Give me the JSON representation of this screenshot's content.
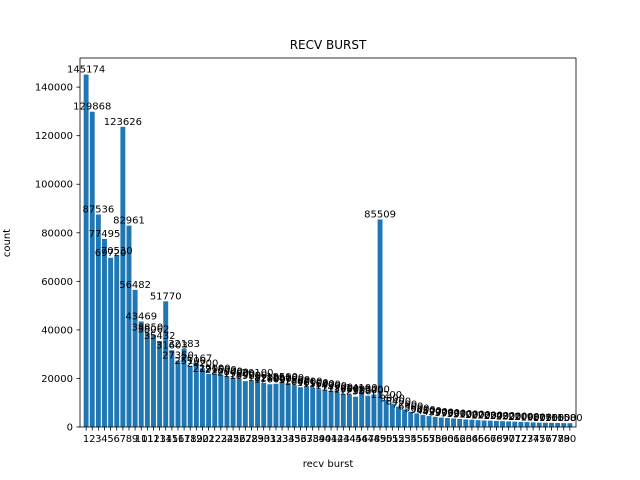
{
  "chart_data": {
    "type": "bar",
    "title": "RECV BURST",
    "xlabel": "recv burst",
    "ylabel": "count",
    "ylim": [
      0,
      152000
    ],
    "xlim": [
      0,
      81
    ],
    "y_ticks": [
      0,
      20000,
      40000,
      60000,
      80000,
      100000,
      120000,
      140000
    ],
    "y_tick_labels": [
      "0",
      "20000",
      "40000",
      "60000",
      "80000",
      "100000",
      "120000",
      "140000"
    ],
    "grid": false,
    "legend": "none",
    "bar_color": "#1f77b4",
    "categories": [
      1,
      2,
      3,
      4,
      5,
      6,
      7,
      8,
      9,
      10,
      11,
      12,
      13,
      14,
      15,
      16,
      17,
      18,
      19,
      20,
      21,
      22,
      23,
      24,
      25,
      26,
      27,
      28,
      29,
      30,
      31,
      32,
      33,
      34,
      35,
      36,
      37,
      38,
      39,
      40,
      41,
      42,
      43,
      44,
      45,
      46,
      47,
      48,
      49,
      50,
      51,
      52,
      53,
      54,
      55,
      56,
      57,
      58,
      59,
      60,
      61,
      62,
      63,
      64,
      65,
      66,
      67,
      68,
      69,
      70,
      71,
      72,
      73,
      74,
      75,
      76,
      77,
      78,
      79,
      80
    ],
    "values": [
      145174,
      129868,
      87536,
      77495,
      69720,
      70530,
      123626,
      82961,
      56482,
      43469,
      38850,
      38062,
      35432,
      51770,
      31603,
      27350,
      32183,
      25100,
      26167,
      24200,
      21900,
      22100,
      21500,
      20900,
      20400,
      19800,
      18900,
      19200,
      20100,
      18200,
      17600,
      17800,
      18500,
      18100,
      17300,
      16400,
      16700,
      16100,
      15600,
      15400,
      14900,
      14200,
      13600,
      13300,
      12500,
      14100,
      12900,
      13400,
      85509,
      11200,
      9600,
      8400,
      7200,
      6300,
      5600,
      5000,
      4500,
      4200,
      3900,
      3700,
      3500,
      3300,
      3100,
      3000,
      2800,
      2700,
      2600,
      2500,
      2400,
      2300,
      2200,
      2100,
      2000,
      1900,
      1800,
      1750,
      1700,
      1650,
      1600,
      1580
    ]
  }
}
